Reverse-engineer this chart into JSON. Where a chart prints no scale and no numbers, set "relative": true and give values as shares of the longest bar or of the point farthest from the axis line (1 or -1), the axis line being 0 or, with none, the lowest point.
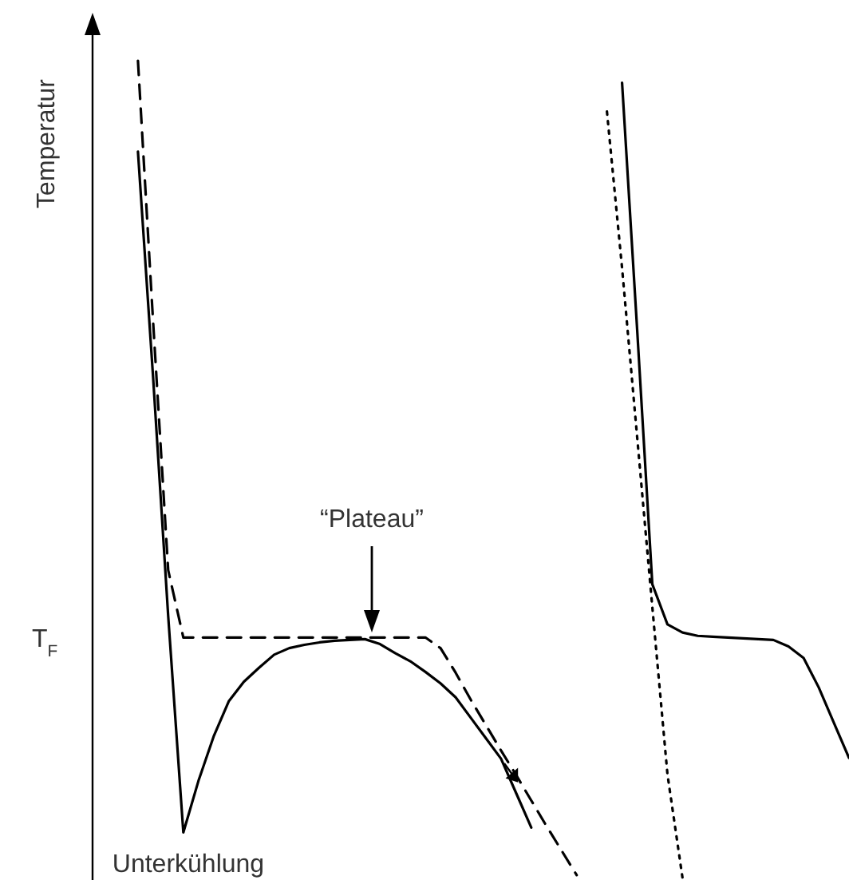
{
  "chart_data": {
    "type": "line",
    "ylabel": "Temperatur",
    "relative": true,
    "categories": [
      null,
      null,
      null,
      null,
      null,
      null,
      null,
      null,
      null,
      null,
      null,
      null,
      null,
      null,
      null,
      null,
      null,
      null,
      null,
      null,
      null,
      null,
      null,
      null,
      null,
      null,
      null,
      null,
      null,
      null,
      null,
      null,
      null,
      null,
      null,
      null,
      null,
      null,
      null,
      null,
      null,
      null,
      null,
      null,
      null,
      null,
      null,
      null,
      null,
      null,
      null
    ],
    "series": [
      {
        "color": "#000000",
        "line_style": "solid",
        "values": [
          null,
          null,
          null,
          0.889,
          0.614,
          0.322,
          0.058,
          0.121,
          0.175,
          0.218,
          0.242,
          0.259,
          0.275,
          0.283,
          0.287,
          0.29,
          0.292,
          0.293,
          0.294,
          0.288,
          0.277,
          0.267,
          0.254,
          0.24,
          0.223,
          0.198,
          0.173,
          0.148,
          0.106,
          0.064,
          null,
          null,
          null,
          null,
          null,
          null,
          null,
          null,
          null,
          null,
          null,
          null,
          null,
          null,
          null,
          null,
          null,
          null,
          null,
          null,
          null
        ]
      },
      {
        "color": "#000000",
        "line_style": "dashed",
        "values": [
          null,
          null,
          null,
          1,
          0.682,
          0.378,
          0.296,
          0.296,
          0.296,
          0.296,
          0.296,
          0.296,
          0.296,
          0.296,
          0.296,
          0.296,
          0.296,
          0.296,
          0.296,
          0.296,
          0.296,
          0.296,
          0.296,
          0.283,
          0.253,
          0.22,
          0.189,
          0.158,
          0.128,
          0.097,
          0.066,
          0.036,
          0.006,
          null,
          null,
          null,
          null,
          null,
          null,
          null,
          null,
          null,
          null,
          null,
          null,
          null,
          null,
          null,
          null,
          null,
          null
        ]
      },
      {
        "color": "#000000",
        "line_style": "solid",
        "values": [
          null,
          null,
          null,
          null,
          null,
          null,
          null,
          null,
          null,
          null,
          null,
          null,
          null,
          null,
          null,
          null,
          null,
          null,
          null,
          null,
          null,
          null,
          null,
          null,
          null,
          null,
          null,
          null,
          null,
          null,
          null,
          null,
          null,
          null,
          null,
          0.973,
          0.671,
          0.361,
          0.312,
          0.302,
          0.298,
          0.297,
          0.296,
          0.295,
          0.294,
          0.293,
          0.285,
          0.271,
          0.235,
          0.192,
          0.149
        ]
      },
      {
        "color": "#000000",
        "line_style": "dotted",
        "values": [
          null,
          null,
          null,
          null,
          null,
          null,
          null,
          null,
          null,
          null,
          null,
          null,
          null,
          null,
          null,
          null,
          null,
          null,
          null,
          null,
          null,
          null,
          null,
          null,
          null,
          null,
          null,
          null,
          null,
          null,
          null,
          null,
          null,
          null,
          0.938,
          0.747,
          0.54,
          0.333,
          0.129,
          0.002,
          null,
          null,
          null,
          null,
          null,
          null,
          null,
          null,
          null,
          null,
          null
        ]
      }
    ],
    "annotations": [
      "T$_{F}$",
      "“Plateau”",
      "Unterkühlung"
    ]
  }
}
